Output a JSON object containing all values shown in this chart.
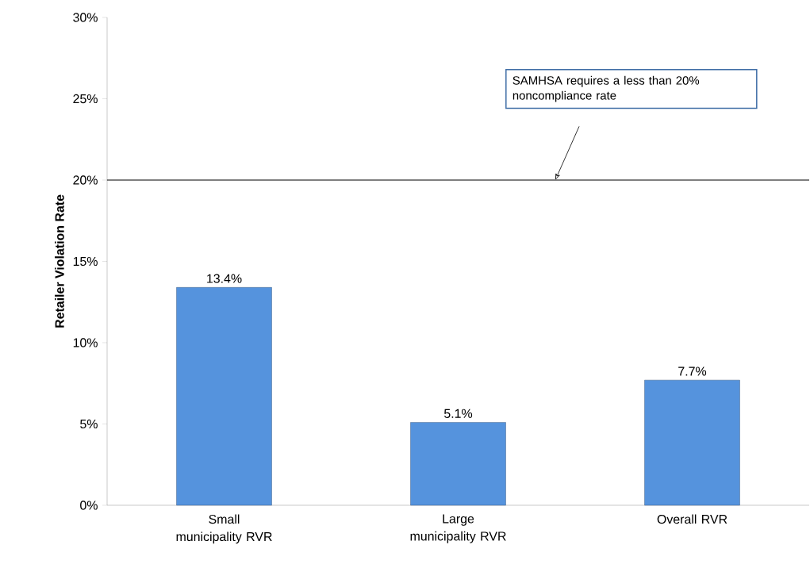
{
  "chart_data": {
    "type": "bar",
    "ylabel": "Retailer Violation Rate",
    "categories": [
      "Small municipality RVR",
      "Large municipality RVR",
      "Overall RVR"
    ],
    "values": [
      13.4,
      5.1,
      7.7
    ],
    "value_labels": [
      "13.4%",
      "5.1%",
      "7.7%"
    ],
    "color": "#5593dd",
    "ylim": [
      0,
      30
    ],
    "yticks": [
      {
        "value": 0,
        "label": "0%"
      },
      {
        "value": 5,
        "label": "5%"
      },
      {
        "value": 10,
        "label": "10%"
      },
      {
        "value": 15,
        "label": "15%"
      },
      {
        "value": 20,
        "label": "20%"
      },
      {
        "value": 25,
        "label": "25%"
      },
      {
        "value": 30,
        "label": "30%"
      }
    ],
    "ref_lines": [
      {
        "axis": "y",
        "value": 20,
        "label": "SAMHSA requires a less than 20% noncompliance rate",
        "color": "#000000"
      }
    ]
  }
}
